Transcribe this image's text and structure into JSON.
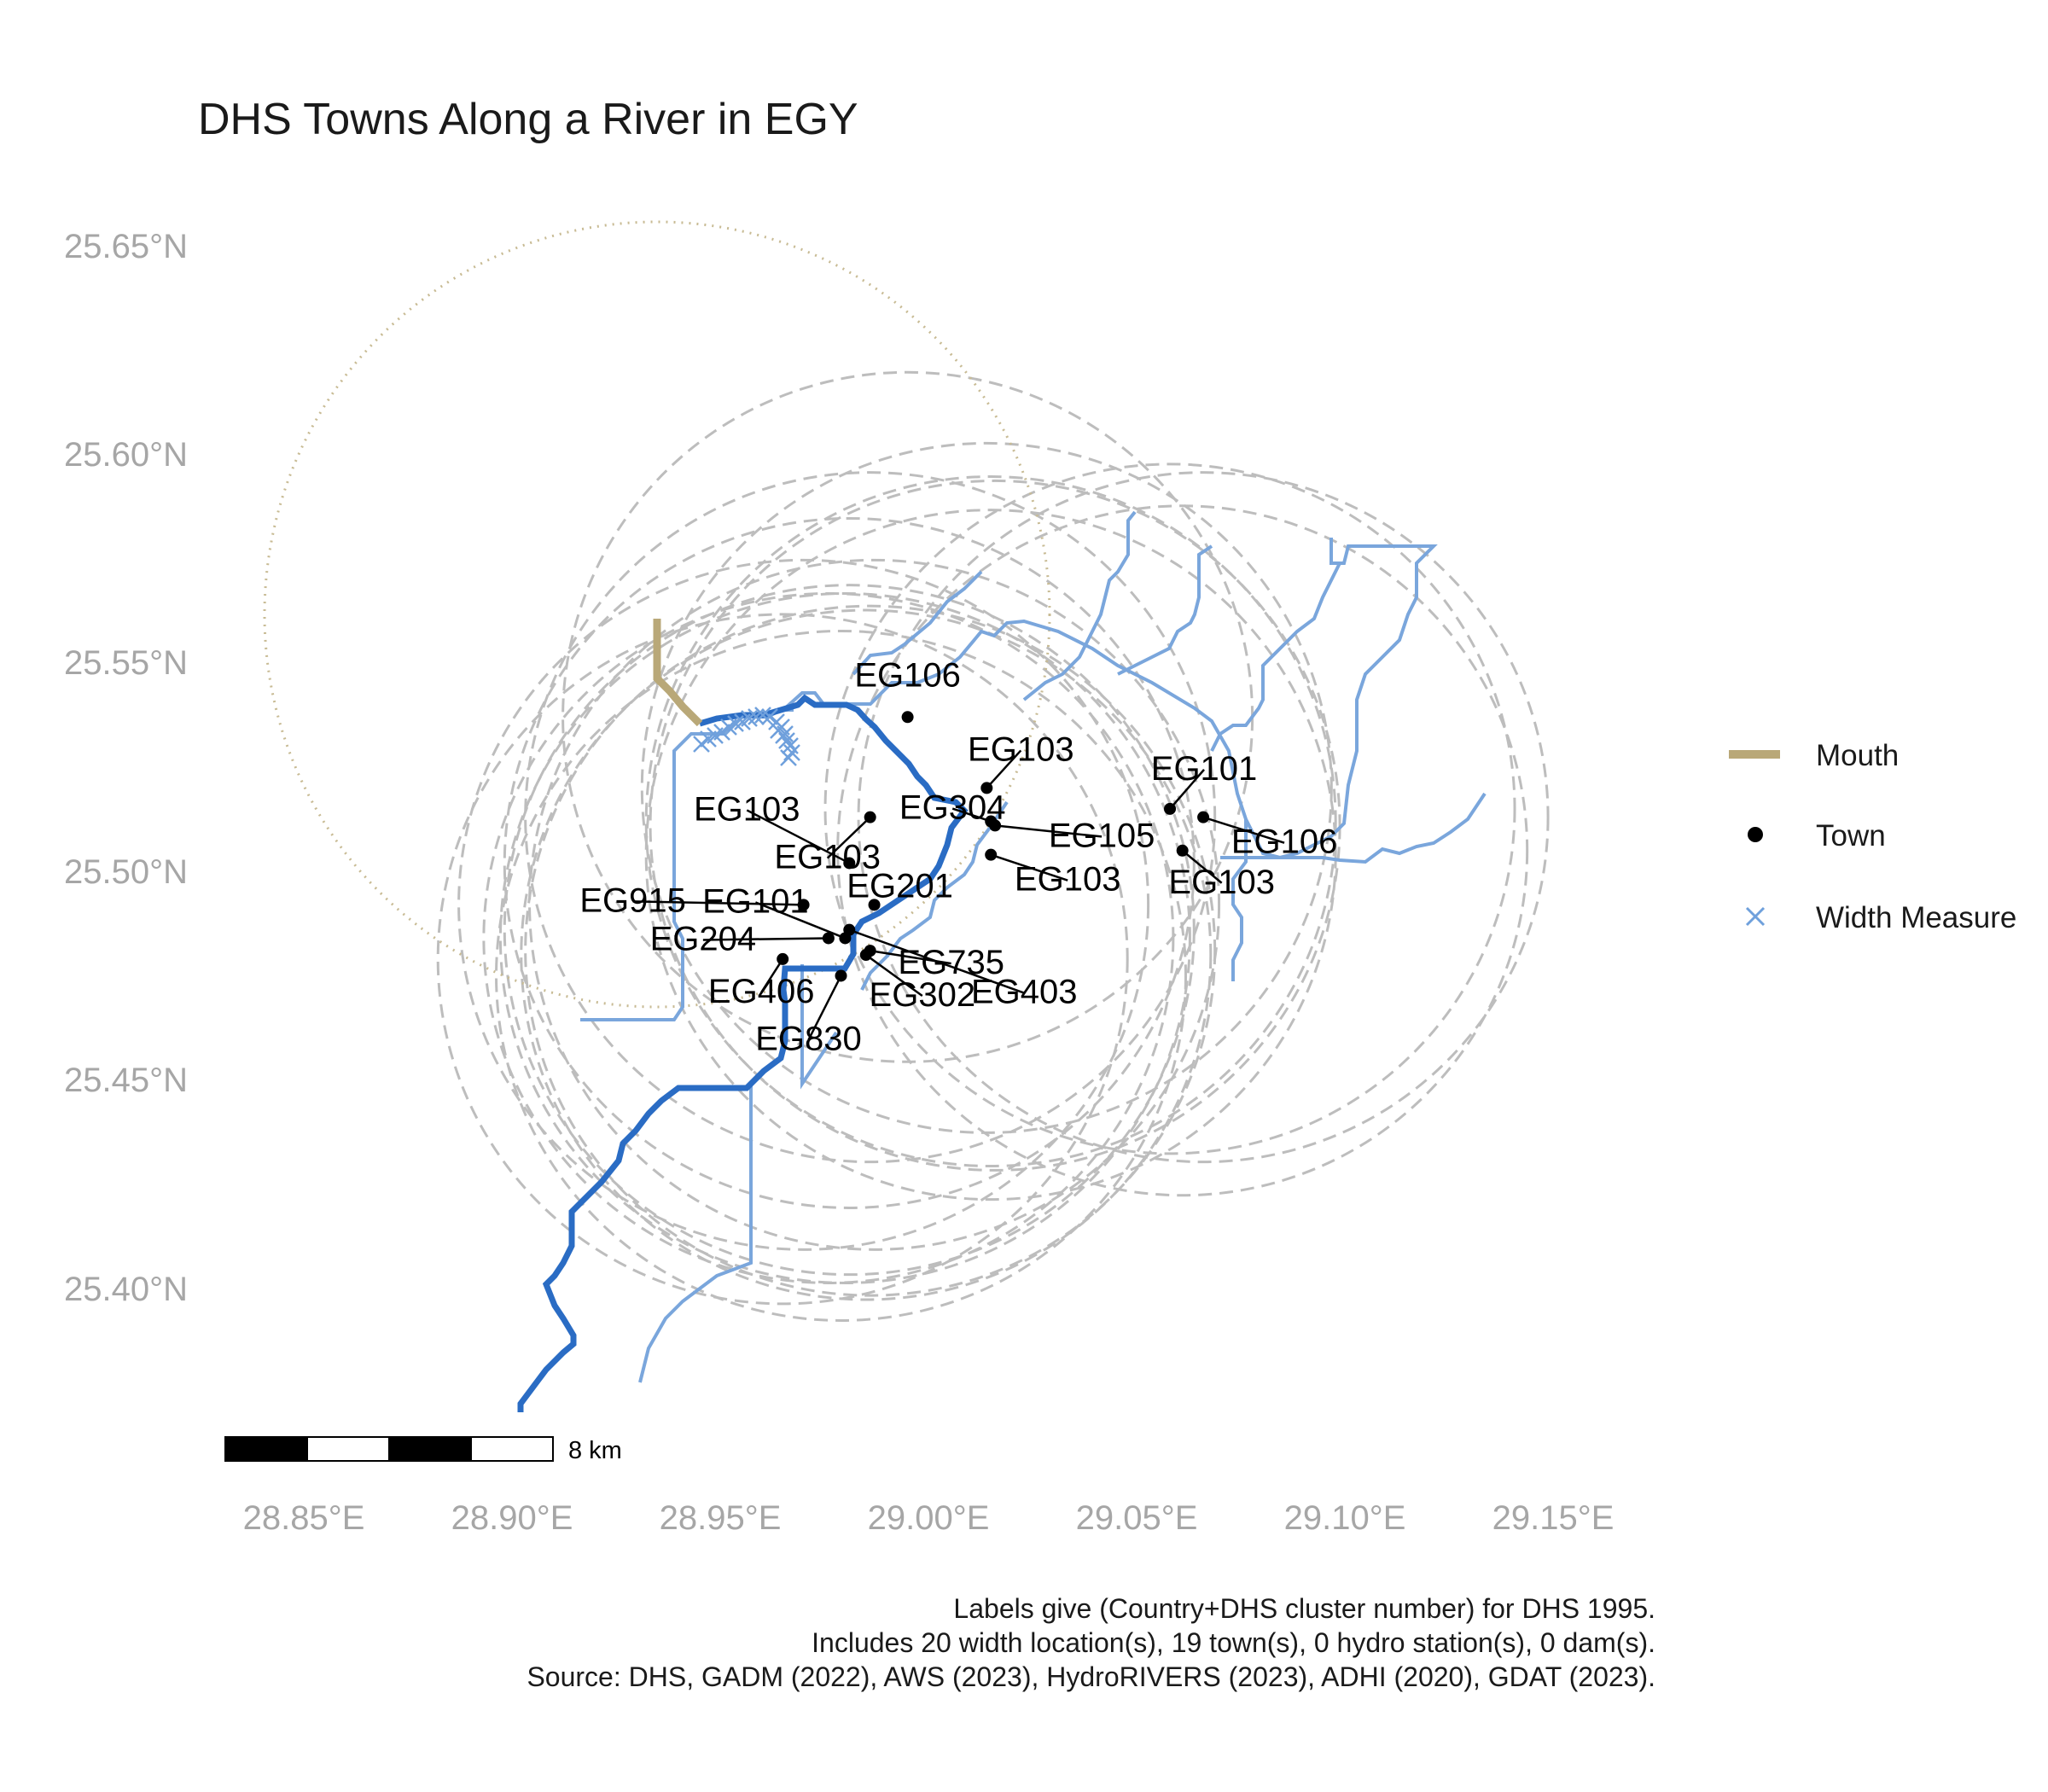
{
  "title": "DHS Towns Along a River in EGY",
  "axes": {
    "x_ticks": [
      "28.85°E",
      "28.90°E",
      "28.95°E",
      "29.00°E",
      "29.05°E",
      "29.10°E",
      "29.15°E"
    ],
    "y_ticks": [
      "25.65°N",
      "25.60°N",
      "25.55°N",
      "25.50°N",
      "25.45°N",
      "25.40°N"
    ]
  },
  "legend": [
    {
      "label": "Mouth",
      "symbol": "line",
      "color": "#b9a878"
    },
    {
      "label": "Town",
      "symbol": "dot",
      "color": "#000000"
    },
    {
      "label": "Width Measure",
      "symbol": "cross",
      "color": "#6fa0dc"
    }
  ],
  "scale_bar": {
    "label": "8 km"
  },
  "caption": [
    "Labels give (Country+DHS cluster number) for DHS 1995.",
    "Includes 20 width location(s), 19 town(s), 0 hydro station(s), 0 dam(s).",
    "Source: DHS, GADM (2022), AWS (2023), HydroRIVERS (2023), ADHI (2020), GDAT (2023)."
  ],
  "colors": {
    "main_river": "#2a6cc4",
    "tributary": "#7aa6dc",
    "buffer": "#bdbdbd",
    "mouth": "#b9a878",
    "town": "#000000"
  },
  "chart_data": {
    "type": "scatter",
    "title": "DHS Towns Along a River in EGY",
    "xlim": [
      28.83,
      29.17
    ],
    "ylim": [
      25.36,
      25.66
    ],
    "towns": [
      {
        "label": "EG106",
        "lon": 28.995,
        "lat": 25.539
      },
      {
        "label": "EG103",
        "lon": 28.986,
        "lat": 25.515
      },
      {
        "label": "EG103",
        "lon": 29.014,
        "lat": 25.522
      },
      {
        "label": "EG101",
        "lon": 29.058,
        "lat": 25.517
      },
      {
        "label": "EG106",
        "lon": 29.066,
        "lat": 25.515
      },
      {
        "label": "EG103",
        "lon": 28.981,
        "lat": 25.504
      },
      {
        "label": "EG304",
        "lon": 29.015,
        "lat": 25.514
      },
      {
        "label": "EG105",
        "lon": 29.016,
        "lat": 25.513
      },
      {
        "label": "EG103",
        "lon": 29.015,
        "lat": 25.506
      },
      {
        "label": "EG103",
        "lon": 29.061,
        "lat": 25.507
      },
      {
        "label": "EG915",
        "lon": 28.97,
        "lat": 25.494
      },
      {
        "label": "EG101",
        "lon": 28.98,
        "lat": 25.486
      },
      {
        "label": "EG201",
        "lon": 28.987,
        "lat": 25.494
      },
      {
        "label": "EG204",
        "lon": 28.976,
        "lat": 25.486
      },
      {
        "label": "EG735",
        "lon": 28.986,
        "lat": 25.483
      },
      {
        "label": "EG302",
        "lon": 28.985,
        "lat": 25.482
      },
      {
        "label": "EG403",
        "lon": 28.981,
        "lat": 25.488
      },
      {
        "label": "EG406",
        "lon": 28.965,
        "lat": 25.481
      },
      {
        "label": "EG830",
        "lon": 28.979,
        "lat": 25.477
      }
    ]
  }
}
